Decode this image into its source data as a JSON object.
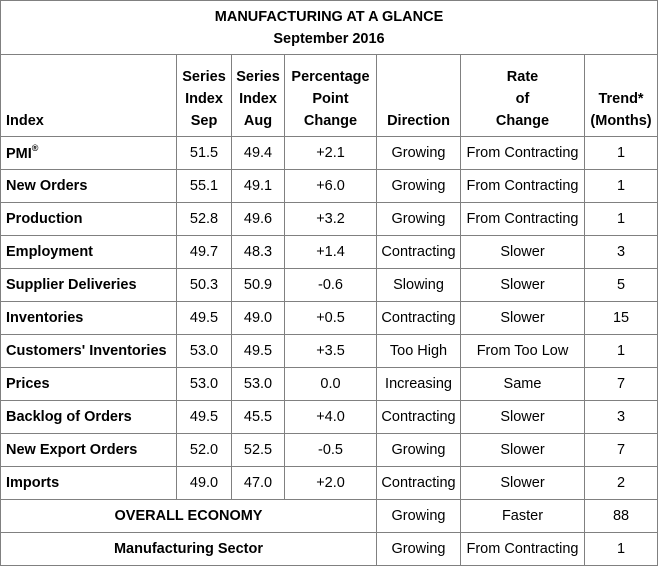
{
  "title": {
    "line1": "MANUFACTURING AT A GLANCE",
    "line2": "September 2016"
  },
  "headers": {
    "index": "Index",
    "sep_l1": "Series",
    "sep_l2": "Index",
    "sep_l3": "Sep",
    "aug_l1": "Series",
    "aug_l2": "Index",
    "aug_l3": "Aug",
    "chg_l1": "Percentage",
    "chg_l2": "Point",
    "chg_l3": "Change",
    "direction": "Direction",
    "rate_l1": "Rate",
    "rate_l2": "of",
    "rate_l3": "Change",
    "trend_l1": "Trend*",
    "trend_l2": "(Months)"
  },
  "rows": [
    {
      "index": "PMI",
      "sup": "®",
      "sep": "51.5",
      "aug": "49.4",
      "change": "+2.1",
      "direction": "Growing",
      "rate": "From Contracting",
      "trend": "1"
    },
    {
      "index": "New Orders",
      "sep": "55.1",
      "aug": "49.1",
      "change": "+6.0",
      "direction": "Growing",
      "rate": "From Contracting",
      "trend": "1"
    },
    {
      "index": "Production",
      "sep": "52.8",
      "aug": "49.6",
      "change": "+3.2",
      "direction": "Growing",
      "rate": "From Contracting",
      "trend": "1"
    },
    {
      "index": "Employment",
      "sep": "49.7",
      "aug": "48.3",
      "change": "+1.4",
      "direction": "Contracting",
      "rate": "Slower",
      "trend": "3"
    },
    {
      "index": "Supplier Deliveries",
      "sep": "50.3",
      "aug": "50.9",
      "change": "-0.6",
      "direction": "Slowing",
      "rate": "Slower",
      "trend": "5"
    },
    {
      "index": "Inventories",
      "sep": "49.5",
      "aug": "49.0",
      "change": "+0.5",
      "direction": "Contracting",
      "rate": "Slower",
      "trend": "15"
    },
    {
      "index": "Customers' Inventories",
      "sep": "53.0",
      "aug": "49.5",
      "change": "+3.5",
      "direction": "Too High",
      "rate": "From Too Low",
      "trend": "1"
    },
    {
      "index": "Prices",
      "sep": "53.0",
      "aug": "53.0",
      "change": "0.0",
      "direction": "Increasing",
      "rate": "Same",
      "trend": "7"
    },
    {
      "index": "Backlog of Orders",
      "sep": "49.5",
      "aug": "45.5",
      "change": "+4.0",
      "direction": "Contracting",
      "rate": "Slower",
      "trend": "3"
    },
    {
      "index": "New Export Orders",
      "sep": "52.0",
      "aug": "52.5",
      "change": "-0.5",
      "direction": "Growing",
      "rate": "Slower",
      "trend": "7"
    },
    {
      "index": "Imports",
      "sep": "49.0",
      "aug": "47.0",
      "change": "+2.0",
      "direction": "Contracting",
      "rate": "Slower",
      "trend": "2"
    }
  ],
  "summary": [
    {
      "label": "OVERALL ECONOMY",
      "direction": "Growing",
      "rate": "Faster",
      "trend": "88"
    },
    {
      "label": "Manufacturing Sector",
      "direction": "Growing",
      "rate": "From Contracting",
      "trend": "1"
    }
  ]
}
